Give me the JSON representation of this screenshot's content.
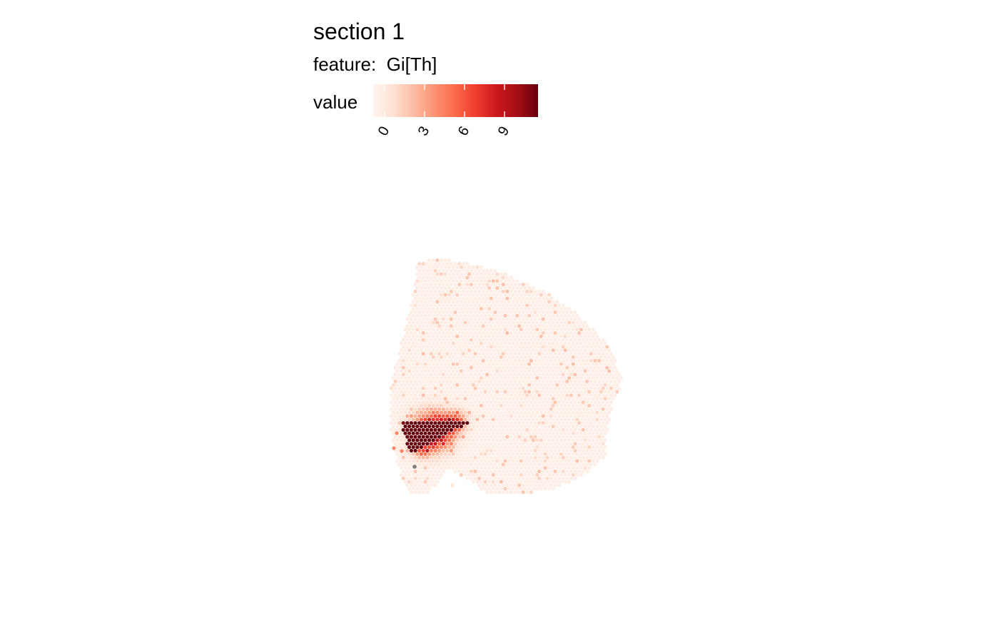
{
  "chart_data": {
    "type": "heatmap",
    "title": "section 1",
    "subtitle": "feature:  Gi[Th]",
    "legend": {
      "title": "value",
      "ticks": [
        0,
        3,
        6,
        9
      ],
      "range": [
        0,
        11
      ],
      "colors": [
        "#fff5f0",
        "#fee0d2",
        "#fcbba1",
        "#fc9272",
        "#fb6a4a",
        "#ef3b2c",
        "#cb181d",
        "#a50f15",
        "#67000d"
      ],
      "tick_rotation_deg": -60,
      "position": "top"
    },
    "na_color": "#7f7f7f",
    "hotspot": {
      "region": "lower-left",
      "peak_value": 11,
      "background_value": 0.4
    }
  }
}
